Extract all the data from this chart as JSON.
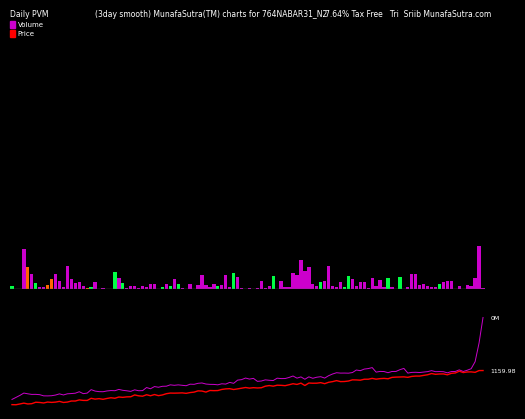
{
  "title_left": "Daily PVM",
  "title_center": "(3day smooth) MunafaSutra(TM) charts for 764NABAR31_N2",
  "title_right": "7.64% Tax Free   Tri  Sriib MunafaSutra.com",
  "legend_labels": [
    "Volume",
    "Price"
  ],
  "legend_colors_vol": "#cc00cc",
  "legend_colors_price": "#ff0000",
  "bg_color": "#000000",
  "text_color": "#ffffff",
  "annotation_0M": "0M",
  "annotation_price": "1159.98",
  "n_points": 120,
  "price_line_color": "#ff0000",
  "volume_line_color": "#cc00cc",
  "bar_color_main": "#cc00cc",
  "bar_color_alt": "#00ff44",
  "bar_color_orange": "#ff6600",
  "title_fontsize": 5.5,
  "legend_fontsize": 5.0
}
